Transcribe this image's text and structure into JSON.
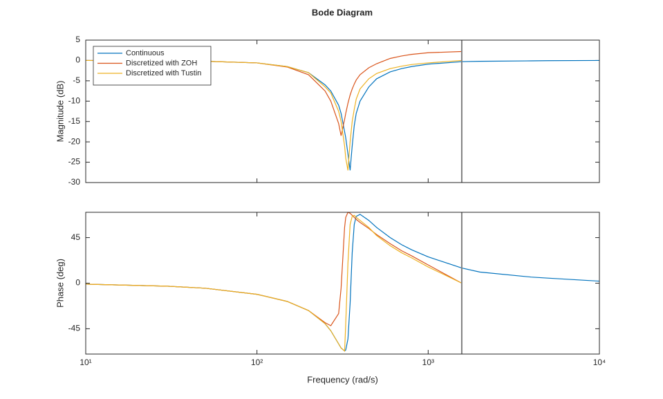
{
  "chart_data": [
    {
      "type": "line",
      "title": "Bode Diagram",
      "ylabel": "Magnitude (dB)",
      "x": [
        10,
        30,
        50,
        100,
        150,
        200,
        250,
        270,
        300,
        310,
        325,
        330,
        340,
        350,
        360,
        370,
        380,
        400,
        450,
        500,
        600,
        700,
        800,
        1000,
        1571,
        2000,
        4000,
        5000,
        10000
      ],
      "xscale": "log",
      "xlim": [
        10,
        10000
      ],
      "xticks": [
        10,
        100,
        1000,
        10000
      ],
      "ylim": [
        -30,
        5
      ],
      "yticks": [
        5,
        0,
        -5,
        -10,
        -15,
        -20,
        -25,
        -30
      ],
      "vline": 1571,
      "legend": "upper left",
      "series": [
        {
          "name": "Continuous",
          "color": "#0072BD",
          "values": [
            0,
            -0.1,
            -0.2,
            -0.6,
            -1.5,
            -3,
            -6,
            -7.5,
            -11,
            -13,
            -17.5,
            -19,
            -23,
            -27,
            -21,
            -16,
            -13,
            -10,
            -6.5,
            -4.5,
            -2.8,
            -2,
            -1.5,
            -0.9,
            -0.3,
            -0.2,
            -0.1,
            -0.05,
            0
          ]
        },
        {
          "name": "Discretized with ZOH",
          "color": "#D95319",
          "values": [
            0,
            -0.1,
            -0.2,
            -0.6,
            -1.6,
            -3.5,
            -7.5,
            -10,
            -15.5,
            -18.5,
            -14.5,
            -13,
            -10.5,
            -8.5,
            -7,
            -5.8,
            -4.8,
            -3.5,
            -1.8,
            -0.8,
            0.5,
            1.1,
            1.5,
            1.9,
            2.2,
            null,
            null,
            null,
            null
          ]
        },
        {
          "name": "Discretized with Tustin",
          "color": "#EDB120",
          "values": [
            0,
            -0.1,
            -0.2,
            -0.6,
            -1.5,
            -3,
            -6.5,
            -8,
            -12.5,
            -15,
            -21,
            -24,
            -27,
            -20,
            -15,
            -12,
            -9.5,
            -7,
            -4.5,
            -3.2,
            -2,
            -1.4,
            -1,
            -0.6,
            0,
            null,
            null,
            null,
            null
          ]
        }
      ]
    },
    {
      "type": "line",
      "ylabel": "Phase (deg)",
      "xlabel": "Frequency (rad/s)",
      "x": [
        10,
        30,
        50,
        100,
        150,
        200,
        250,
        270,
        300,
        310,
        325,
        330,
        340,
        350,
        360,
        370,
        380,
        400,
        450,
        500,
        600,
        700,
        800,
        1000,
        1571,
        2000,
        4000,
        5000,
        10000
      ],
      "xscale": "log",
      "xlim": [
        10,
        10000
      ],
      "xticks": [
        {
          "value": 10,
          "label": "10¹"
        },
        {
          "value": 100,
          "label": "10²"
        },
        {
          "value": 1000,
          "label": "10³"
        },
        {
          "value": 10000,
          "label": "10⁴"
        }
      ],
      "ylim": [
        -70,
        70
      ],
      "yticks": [
        45,
        0,
        -45
      ],
      "vline": 1571,
      "series": [
        {
          "color": "#0072BD",
          "values": [
            -1,
            -3,
            -5,
            -11,
            -18,
            -27,
            -40,
            -47,
            -60,
            -64,
            -67,
            -66,
            -55,
            -20,
            30,
            58,
            66,
            68,
            62,
            55,
            45,
            38,
            33,
            26,
            15,
            11,
            6,
            5,
            2
          ]
        },
        {
          "color": "#D95319",
          "values": [
            -1,
            -3,
            -5,
            -11,
            -18,
            -27,
            -39,
            -42,
            -30,
            -5,
            55,
            65,
            70,
            69,
            67,
            65,
            63,
            60,
            54,
            48,
            39,
            32,
            27,
            18,
            0,
            null,
            null,
            null,
            null
          ]
        },
        {
          "color": "#EDB120",
          "values": [
            -1,
            -3,
            -5,
            -11,
            -18,
            -27,
            -40,
            -47,
            -60,
            -64,
            -67,
            -40,
            20,
            58,
            66,
            67,
            65,
            62,
            55,
            47,
            37,
            30,
            25,
            16,
            0,
            null,
            null,
            null,
            null
          ]
        }
      ]
    }
  ]
}
